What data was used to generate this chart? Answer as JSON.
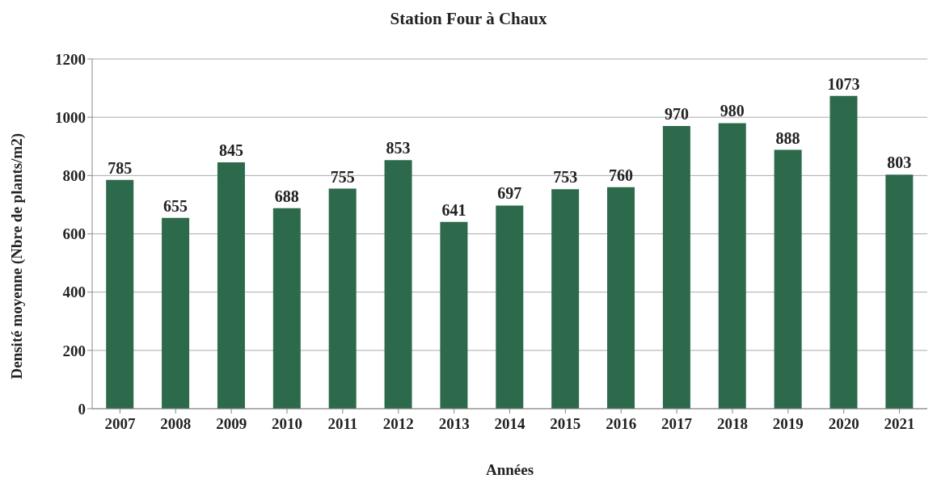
{
  "chart_data": {
    "type": "bar",
    "title": "Station Four à Chaux",
    "xlabel": "Années",
    "ylabel": "Densité moyenne (Nbre de plants/m2)",
    "categories": [
      "2007",
      "2008",
      "2009",
      "2010",
      "2011",
      "2012",
      "2013",
      "2014",
      "2015",
      "2016",
      "2017",
      "2018",
      "2019",
      "2020",
      "2021"
    ],
    "values": [
      785,
      655,
      845,
      688,
      755,
      853,
      641,
      697,
      753,
      760,
      970,
      980,
      888,
      1073,
      803
    ],
    "color": "#2d6a4b",
    "ylim": [
      0,
      1200
    ],
    "yticks": [
      0,
      200,
      400,
      600,
      800,
      1000,
      1200
    ],
    "grid": "y",
    "data_labels": true,
    "legend": false
  }
}
